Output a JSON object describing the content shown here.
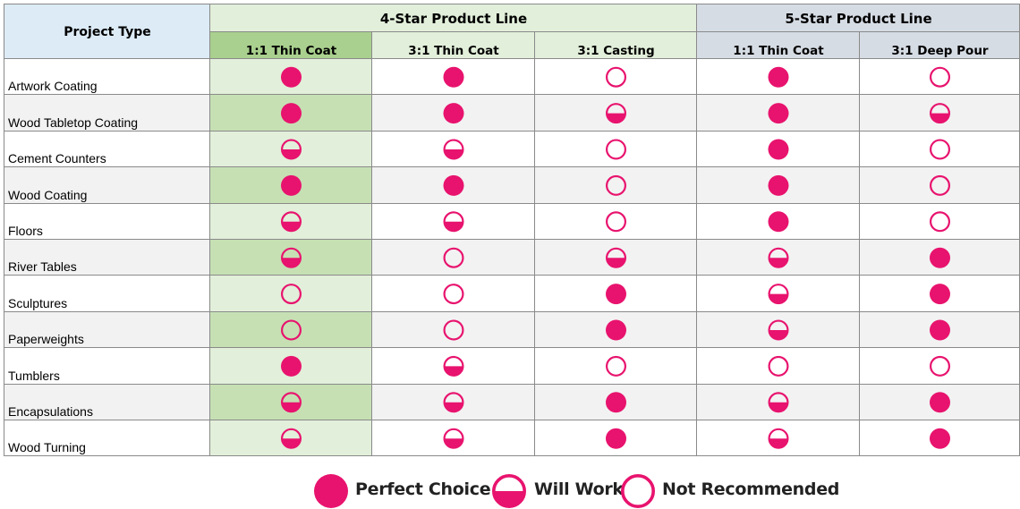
{
  "colors": {
    "magenta": "#e8136e",
    "header_blue": "#dcebf6",
    "group4_bg": "#e2efda",
    "col1_header": "#a9d08e",
    "col1_cell": "#c6e0b4",
    "col1_cell_alt": "#e2efda",
    "group5_bg": "#d6dce4",
    "row_alt": "#f2f2f2",
    "border": "#8a8a8a"
  },
  "chart_data": {
    "type": "table",
    "row_header": "Project Type",
    "groups": [
      {
        "label": "4-Star Product Line",
        "span": 3
      },
      {
        "label": "5-Star Product Line",
        "span": 2
      }
    ],
    "columns": [
      "1:1 Thin Coat",
      "3:1 Thin Coat",
      "3:1 Casting",
      "1:1 Thin Coat",
      "3:1 Deep Pour"
    ],
    "rows": [
      {
        "label": "Artwork Coating",
        "ratings": [
          "perfect",
          "perfect",
          "not",
          "perfect",
          "not"
        ]
      },
      {
        "label": "Wood Tabletop Coating",
        "ratings": [
          "perfect",
          "perfect",
          "will",
          "perfect",
          "will"
        ]
      },
      {
        "label": "Cement Counters",
        "ratings": [
          "will",
          "will",
          "not",
          "perfect",
          "not"
        ]
      },
      {
        "label": "Wood Coating",
        "ratings": [
          "perfect",
          "perfect",
          "not",
          "perfect",
          "not"
        ]
      },
      {
        "label": "Floors",
        "ratings": [
          "will",
          "will",
          "not",
          "perfect",
          "not"
        ]
      },
      {
        "label": "River Tables",
        "ratings": [
          "will",
          "not",
          "will",
          "will",
          "perfect"
        ]
      },
      {
        "label": "Sculptures",
        "ratings": [
          "not",
          "not",
          "perfect",
          "will",
          "perfect"
        ]
      },
      {
        "label": "Paperweights",
        "ratings": [
          "not",
          "not",
          "perfect",
          "will",
          "perfect"
        ]
      },
      {
        "label": "Tumblers",
        "ratings": [
          "perfect",
          "will",
          "not",
          "not",
          "not"
        ]
      },
      {
        "label": "Encapsulations",
        "ratings": [
          "will",
          "will",
          "perfect",
          "will",
          "perfect"
        ]
      },
      {
        "label": "Wood Turning",
        "ratings": [
          "will",
          "will",
          "perfect",
          "will",
          "perfect"
        ]
      }
    ],
    "legend": [
      {
        "key": "perfect",
        "label": "Perfect Choice"
      },
      {
        "key": "will",
        "label": "Will Work"
      },
      {
        "key": "not",
        "label": "Not Recommended"
      }
    ]
  }
}
